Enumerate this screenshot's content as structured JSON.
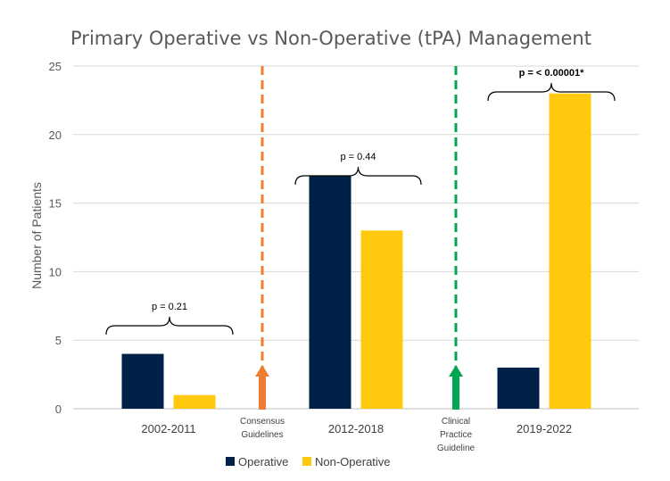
{
  "chart_data": {
    "type": "bar",
    "title": "Primary Operative vs Non-Operative (tPA) Management",
    "ylabel": "Number of Patients",
    "xlabel": "",
    "ylim": [
      0,
      25
    ],
    "yticks": [
      0,
      5,
      10,
      15,
      20,
      25
    ],
    "grid": true,
    "legend_position": "bottom",
    "categories": [
      "2002-2011",
      "2012-2018",
      "2019-2022"
    ],
    "series": [
      {
        "name": "Operative",
        "values": [
          4,
          17,
          3
        ],
        "color": "#002147"
      },
      {
        "name": "Non-Operative",
        "values": [
          1,
          13,
          23
        ],
        "color": "#FFC90E"
      }
    ],
    "p_values": [
      {
        "category": "2002-2011",
        "text": "p = 0.21",
        "bold": false
      },
      {
        "category": "2012-2018",
        "text": "p = 0.44",
        "bold": false
      },
      {
        "category": "2019-2022",
        "text": "p = < 0.00001*",
        "bold": true
      }
    ],
    "guideline_markers": [
      {
        "after_category": "2002-2011",
        "lines": [
          "Consensus",
          "Guidelines"
        ],
        "color": "#ED7D31"
      },
      {
        "after_category": "2012-2018",
        "lines": [
          "Clinical",
          "Practice",
          "Guideline"
        ],
        "color": "#00A651"
      }
    ]
  }
}
